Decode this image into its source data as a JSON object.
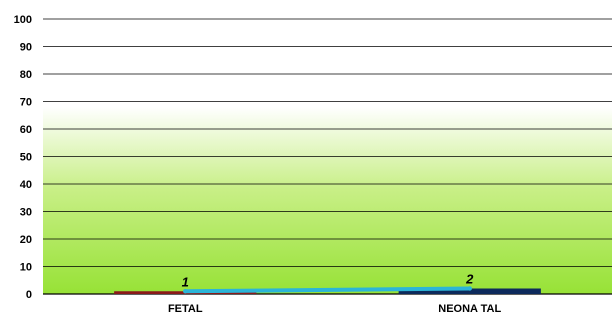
{
  "chart_data": {
    "type": "bar",
    "categories": [
      "FETAL",
      "NEONA TAL"
    ],
    "values": [
      1,
      2
    ],
    "bar_colors": [
      "#8b1a1a",
      "#0d2a5c"
    ],
    "line_overlay": {
      "values": [
        1,
        2
      ],
      "color": "#2bb5d8"
    },
    "data_labels": [
      "1",
      "2"
    ],
    "yticks": [
      "0",
      "10",
      "20",
      "30",
      "40",
      "50",
      "60",
      "70",
      "80",
      "90",
      "100"
    ],
    "ylim": [
      0,
      100
    ],
    "grid": true,
    "background_gradient": {
      "top": "#ffffff",
      "bottom": "#9be23a"
    }
  }
}
